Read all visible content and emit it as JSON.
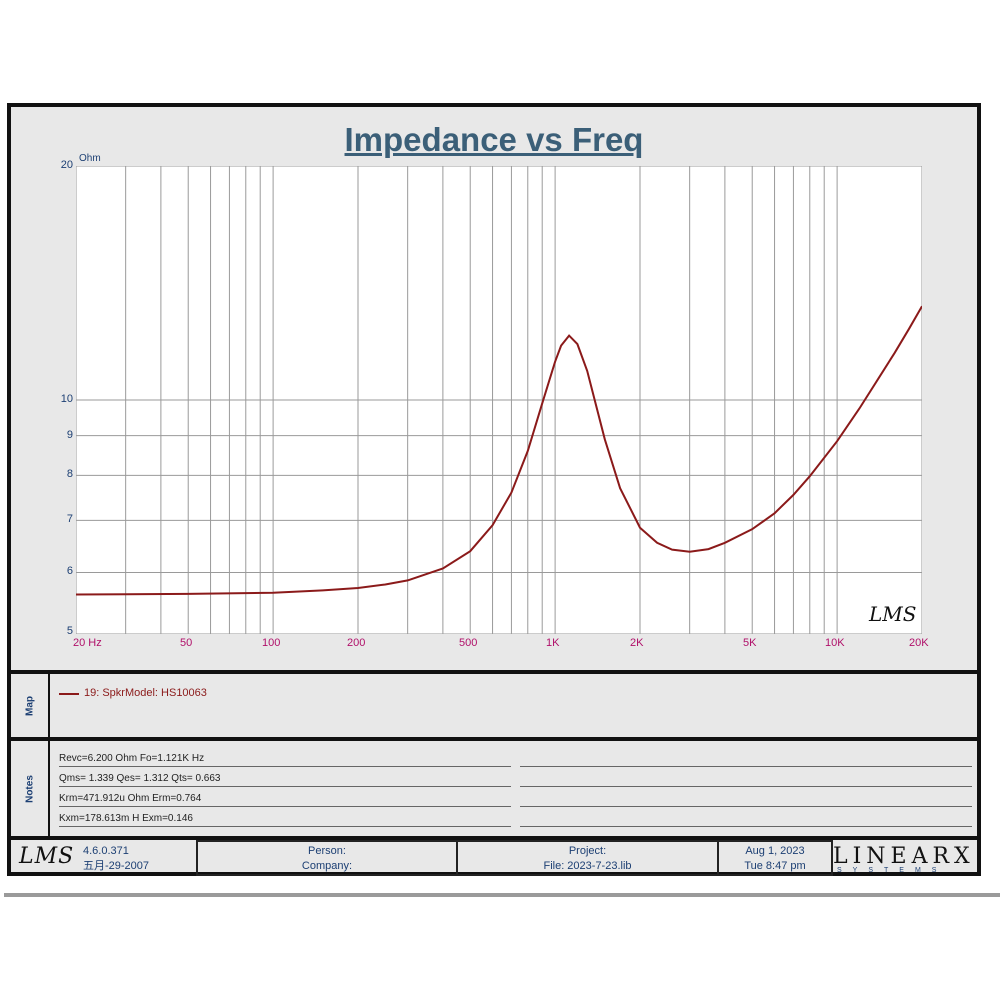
{
  "header": {
    "title": "Impedance vs Freq"
  },
  "chart_data": {
    "type": "line",
    "title": "Impedance vs Freq",
    "ylabel": "Ohm",
    "xlabel": "",
    "x_scale": "log",
    "y_scale": "log",
    "xlim": [
      20,
      20000
    ],
    "ylim": [
      5,
      20
    ],
    "grid": true,
    "x_tick_labels": [
      "20 Hz",
      "50",
      "100",
      "200",
      "500",
      "1K",
      "2K",
      "5K",
      "10K",
      "20K"
    ],
    "x_tick_values": [
      20,
      50,
      100,
      200,
      500,
      1000,
      2000,
      5000,
      10000,
      20000
    ],
    "y_tick_labels": [
      "20",
      "10",
      "9",
      "8",
      "7",
      "6",
      "5"
    ],
    "y_tick_values": [
      20,
      10,
      9,
      8,
      7,
      6,
      5
    ],
    "series": [
      {
        "name": "19: SpkrModel: HS10063",
        "color": "#8b1a1a",
        "x": [
          20,
          50,
          100,
          150,
          200,
          250,
          300,
          400,
          500,
          600,
          700,
          800,
          900,
          1000,
          1050,
          1121,
          1200,
          1300,
          1500,
          1700,
          2000,
          2300,
          2600,
          3000,
          3500,
          4000,
          5000,
          6000,
          7000,
          8000,
          10000,
          12000,
          14000,
          16000,
          18000,
          20000
        ],
        "y": [
          5.62,
          5.63,
          5.65,
          5.69,
          5.73,
          5.79,
          5.86,
          6.07,
          6.39,
          6.9,
          7.6,
          8.6,
          9.9,
          11.2,
          11.75,
          12.1,
          11.8,
          10.9,
          8.9,
          7.7,
          6.85,
          6.55,
          6.42,
          6.38,
          6.43,
          6.55,
          6.82,
          7.15,
          7.55,
          7.98,
          8.85,
          9.75,
          10.65,
          11.5,
          12.35,
          13.2
        ]
      }
    ],
    "legend": "bottom-left panel"
  },
  "legend": {
    "label": "19: SpkrModel: HS10063"
  },
  "panels": {
    "map": "Map",
    "notes": "Notes"
  },
  "notes": [
    "Revc=6.200 Ohm  Fo=1.121K Hz",
    "Qms= 1.339  Qes= 1.312  Qts= 0.663",
    "Krm=471.912u Ohm  Erm=0.764",
    "Kxm=178.613m H  Exm=0.146"
  ],
  "footer": {
    "logo_text": "LMS",
    "version": "4.6.0.371",
    "date": "五月-29-2007",
    "person": "Person:",
    "company": "Company:",
    "project": "Project:",
    "file": "File: 2023-7-23.lib",
    "run_date": "Aug  1, 2023",
    "run_time": "Tue  8:47 pm",
    "brand": "LINEARX",
    "brand_sub": "SYSTEMS"
  },
  "plot_watermark": "LMS",
  "colors": {
    "title": "#3b5f78",
    "curve": "#8b1a1a",
    "x_ticks": "#b0106a",
    "y_ticks": "#1c3f73"
  }
}
